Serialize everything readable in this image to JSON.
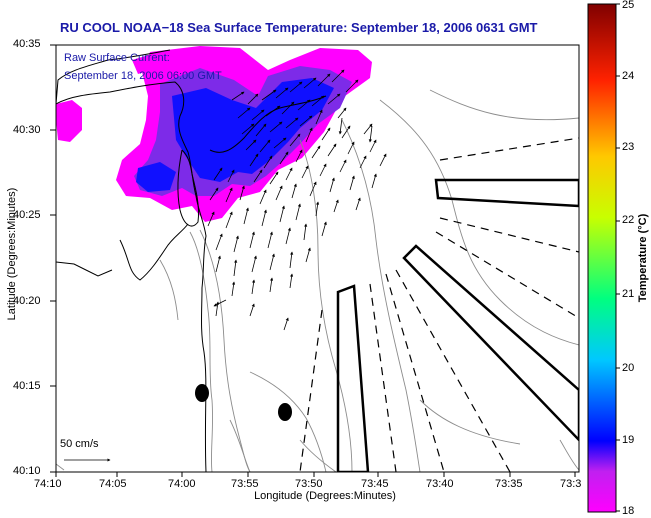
{
  "title": "RU COOL  NOAA−18  Sea Surface Temperature:  September 18, 2006 0631 GMT",
  "overlay": {
    "line1": "Raw Surface Current:",
    "line2": "September 18, 2006 06:00 GMT"
  },
  "scale_label": "50 cm/s",
  "map": {
    "xlabel": "Longitude (Degrees:Minutes)",
    "ylabel": "Latitude (Degrees:Minutes)",
    "x_ticks": [
      "74:10",
      "74:05",
      "74:00",
      "73:55",
      "73:50",
      "73:45",
      "73:40",
      "73:35",
      "73:3"
    ],
    "y_ticks": [
      "40:35",
      "40:30",
      "40:25",
      "40:20",
      "40:15",
      "40:10"
    ],
    "land_color": "#ffffff",
    "coast_color": "#000000",
    "bathymetry_color": "#8c8c8c"
  },
  "colorbar": {
    "label": "Temperature (°C)",
    "min": 18,
    "max": 25,
    "ticks": [
      "25",
      "24",
      "23",
      "22",
      "21",
      "20",
      "19",
      "18"
    ],
    "colors": [
      "#ff00ff",
      "#7d2be8",
      "#0000ff",
      "#00c8ff",
      "#00ff80",
      "#c8ff00",
      "#ffc800",
      "#ff2200",
      "#800000"
    ]
  }
}
